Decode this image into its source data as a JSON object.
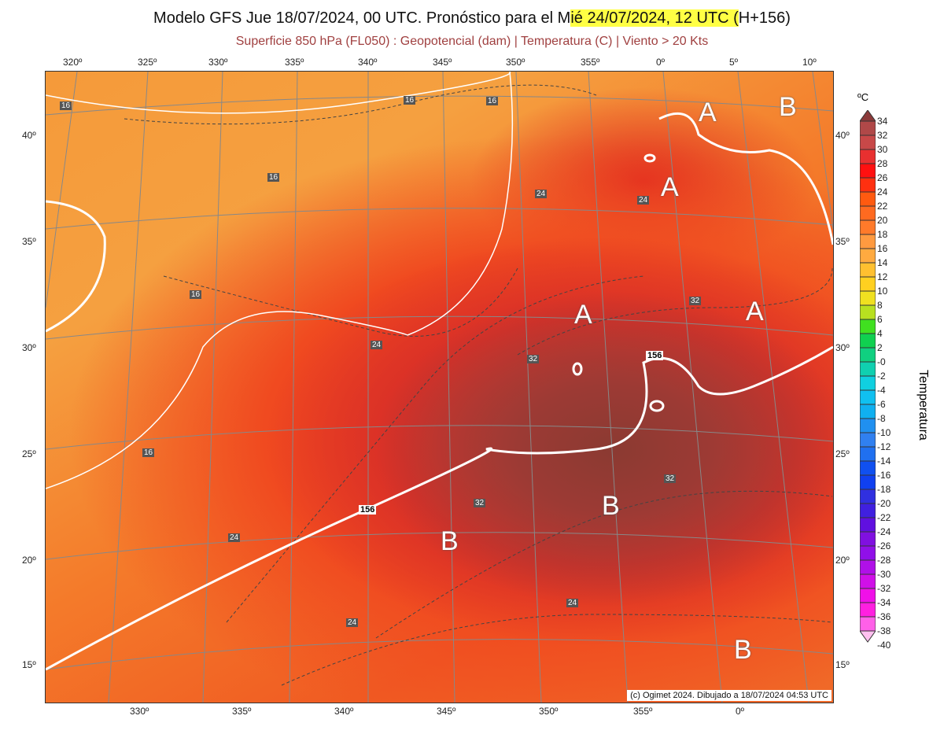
{
  "title": {
    "prefix": "Modelo GFS Jue 18/07/2024, 00 UTC. Pronóstico para el M",
    "highlight": "ié 24/07/2024, 12 UTC (",
    "suffix": "H+156)"
  },
  "subtitle": "Superficie 850 hPa (FL050) : Geopotencial (dam) | Temperatura (C) | Viento > 20 Kts",
  "axes": {
    "top_lon": [
      "320º",
      "325º",
      "330º",
      "335º",
      "340º",
      "345º",
      "350º",
      "355º",
      "0º",
      "5º",
      "10º"
    ],
    "bottom_lon": [
      "330º",
      "335º",
      "340º",
      "345º",
      "350º",
      "355º",
      "0º"
    ],
    "lat": [
      "40º",
      "35º",
      "30º",
      "25º",
      "20º",
      "15º"
    ]
  },
  "centers": [
    {
      "type": "A"
    },
    {
      "type": "B"
    },
    {
      "type": "A"
    },
    {
      "type": "A"
    },
    {
      "type": "A"
    },
    {
      "type": "B"
    },
    {
      "type": "B"
    },
    {
      "type": "B"
    }
  ],
  "contour_labels": [
    "16",
    "16",
    "16",
    "16",
    "16",
    "16",
    "24",
    "24",
    "24",
    "24",
    "24",
    "24",
    "32",
    "32",
    "32",
    "32"
  ],
  "geopotential_labels": [
    "156",
    "156"
  ],
  "credit": "(c) Ogimet 2024. Dibujado a 18/07/2024 04:53 UTC",
  "colorbar": {
    "unit": "ºC",
    "title": "Temperatura",
    "labels": [
      "34",
      "32",
      "30",
      "28",
      "26",
      "24",
      "22",
      "20",
      "18",
      "16",
      "14",
      "12",
      "10",
      "8",
      "6",
      "4",
      "2",
      "-0",
      "-2",
      "-4",
      "-6",
      "-8",
      "-10",
      "-12",
      "-14",
      "-16",
      "-18",
      "-20",
      "-22",
      "-24",
      "-26",
      "-28",
      "-30",
      "-32",
      "-34",
      "-36",
      "-38",
      "-40"
    ],
    "colors": [
      "#8b3a3a",
      "#b04848",
      "#c84848",
      "#e83030",
      "#ff1010",
      "#ff3010",
      "#ff5a10",
      "#ff6a20",
      "#ff7a2a",
      "#ff9a40",
      "#ffaa40",
      "#ffc030",
      "#ffd020",
      "#f0e020",
      "#b8e020",
      "#40e020",
      "#10d050",
      "#10d080",
      "#10d0b0",
      "#10d0e0",
      "#10c0f0",
      "#10b0f0",
      "#2090f0",
      "#3080f0",
      "#2070f0",
      "#1050f0",
      "#1040f0",
      "#3030e0",
      "#4020e0",
      "#6010e0",
      "#8010e0",
      "#9010e8",
      "#b010e8",
      "#d010e8",
      "#f010e8",
      "#ff20e0",
      "#ff60e8",
      "#ffc0f0"
    ]
  }
}
